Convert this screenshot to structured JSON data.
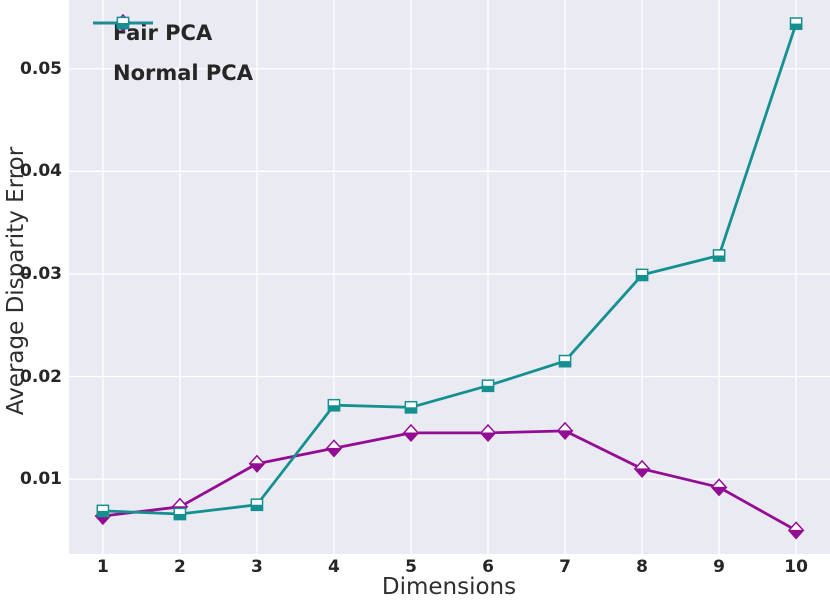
{
  "chart_data": {
    "type": "line",
    "title": "",
    "xlabel": "Dimensions",
    "ylabel": "Average Disparity Error",
    "x": [
      1,
      2,
      3,
      4,
      5,
      6,
      7,
      8,
      9,
      10
    ],
    "xtick_labels": [
      "1",
      "2",
      "3",
      "4",
      "5",
      "6",
      "7",
      "8",
      "9",
      "10"
    ],
    "yticks": [
      0.01,
      0.02,
      0.03,
      0.04,
      0.05
    ],
    "ytick_labels": [
      "0.01",
      "0.02",
      "0.03",
      "0.04",
      "0.05"
    ],
    "xlim": [
      0.56,
      10.44
    ],
    "ylim": [
      0.0027,
      0.0567
    ],
    "grid": true,
    "grid_color": "#ffffff",
    "plot_bg_color": "#eaeaf2",
    "legend_position": "upper left",
    "series": [
      {
        "name": "Fair PCA",
        "color": "#930d94",
        "marker": "diamond",
        "marker_fillstyle": "bottom",
        "values": [
          0.0064,
          0.0073,
          0.0115,
          0.013,
          0.0145,
          0.0145,
          0.0147,
          0.011,
          0.0092,
          0.005
        ]
      },
      {
        "name": "Normal PCA",
        "color": "#149090",
        "marker": "square",
        "marker_fillstyle": "bottom",
        "values": [
          0.0069,
          0.0066,
          0.0075,
          0.0172,
          0.017,
          0.0191,
          0.0215,
          0.0299,
          0.0318,
          0.0544
        ]
      }
    ]
  }
}
